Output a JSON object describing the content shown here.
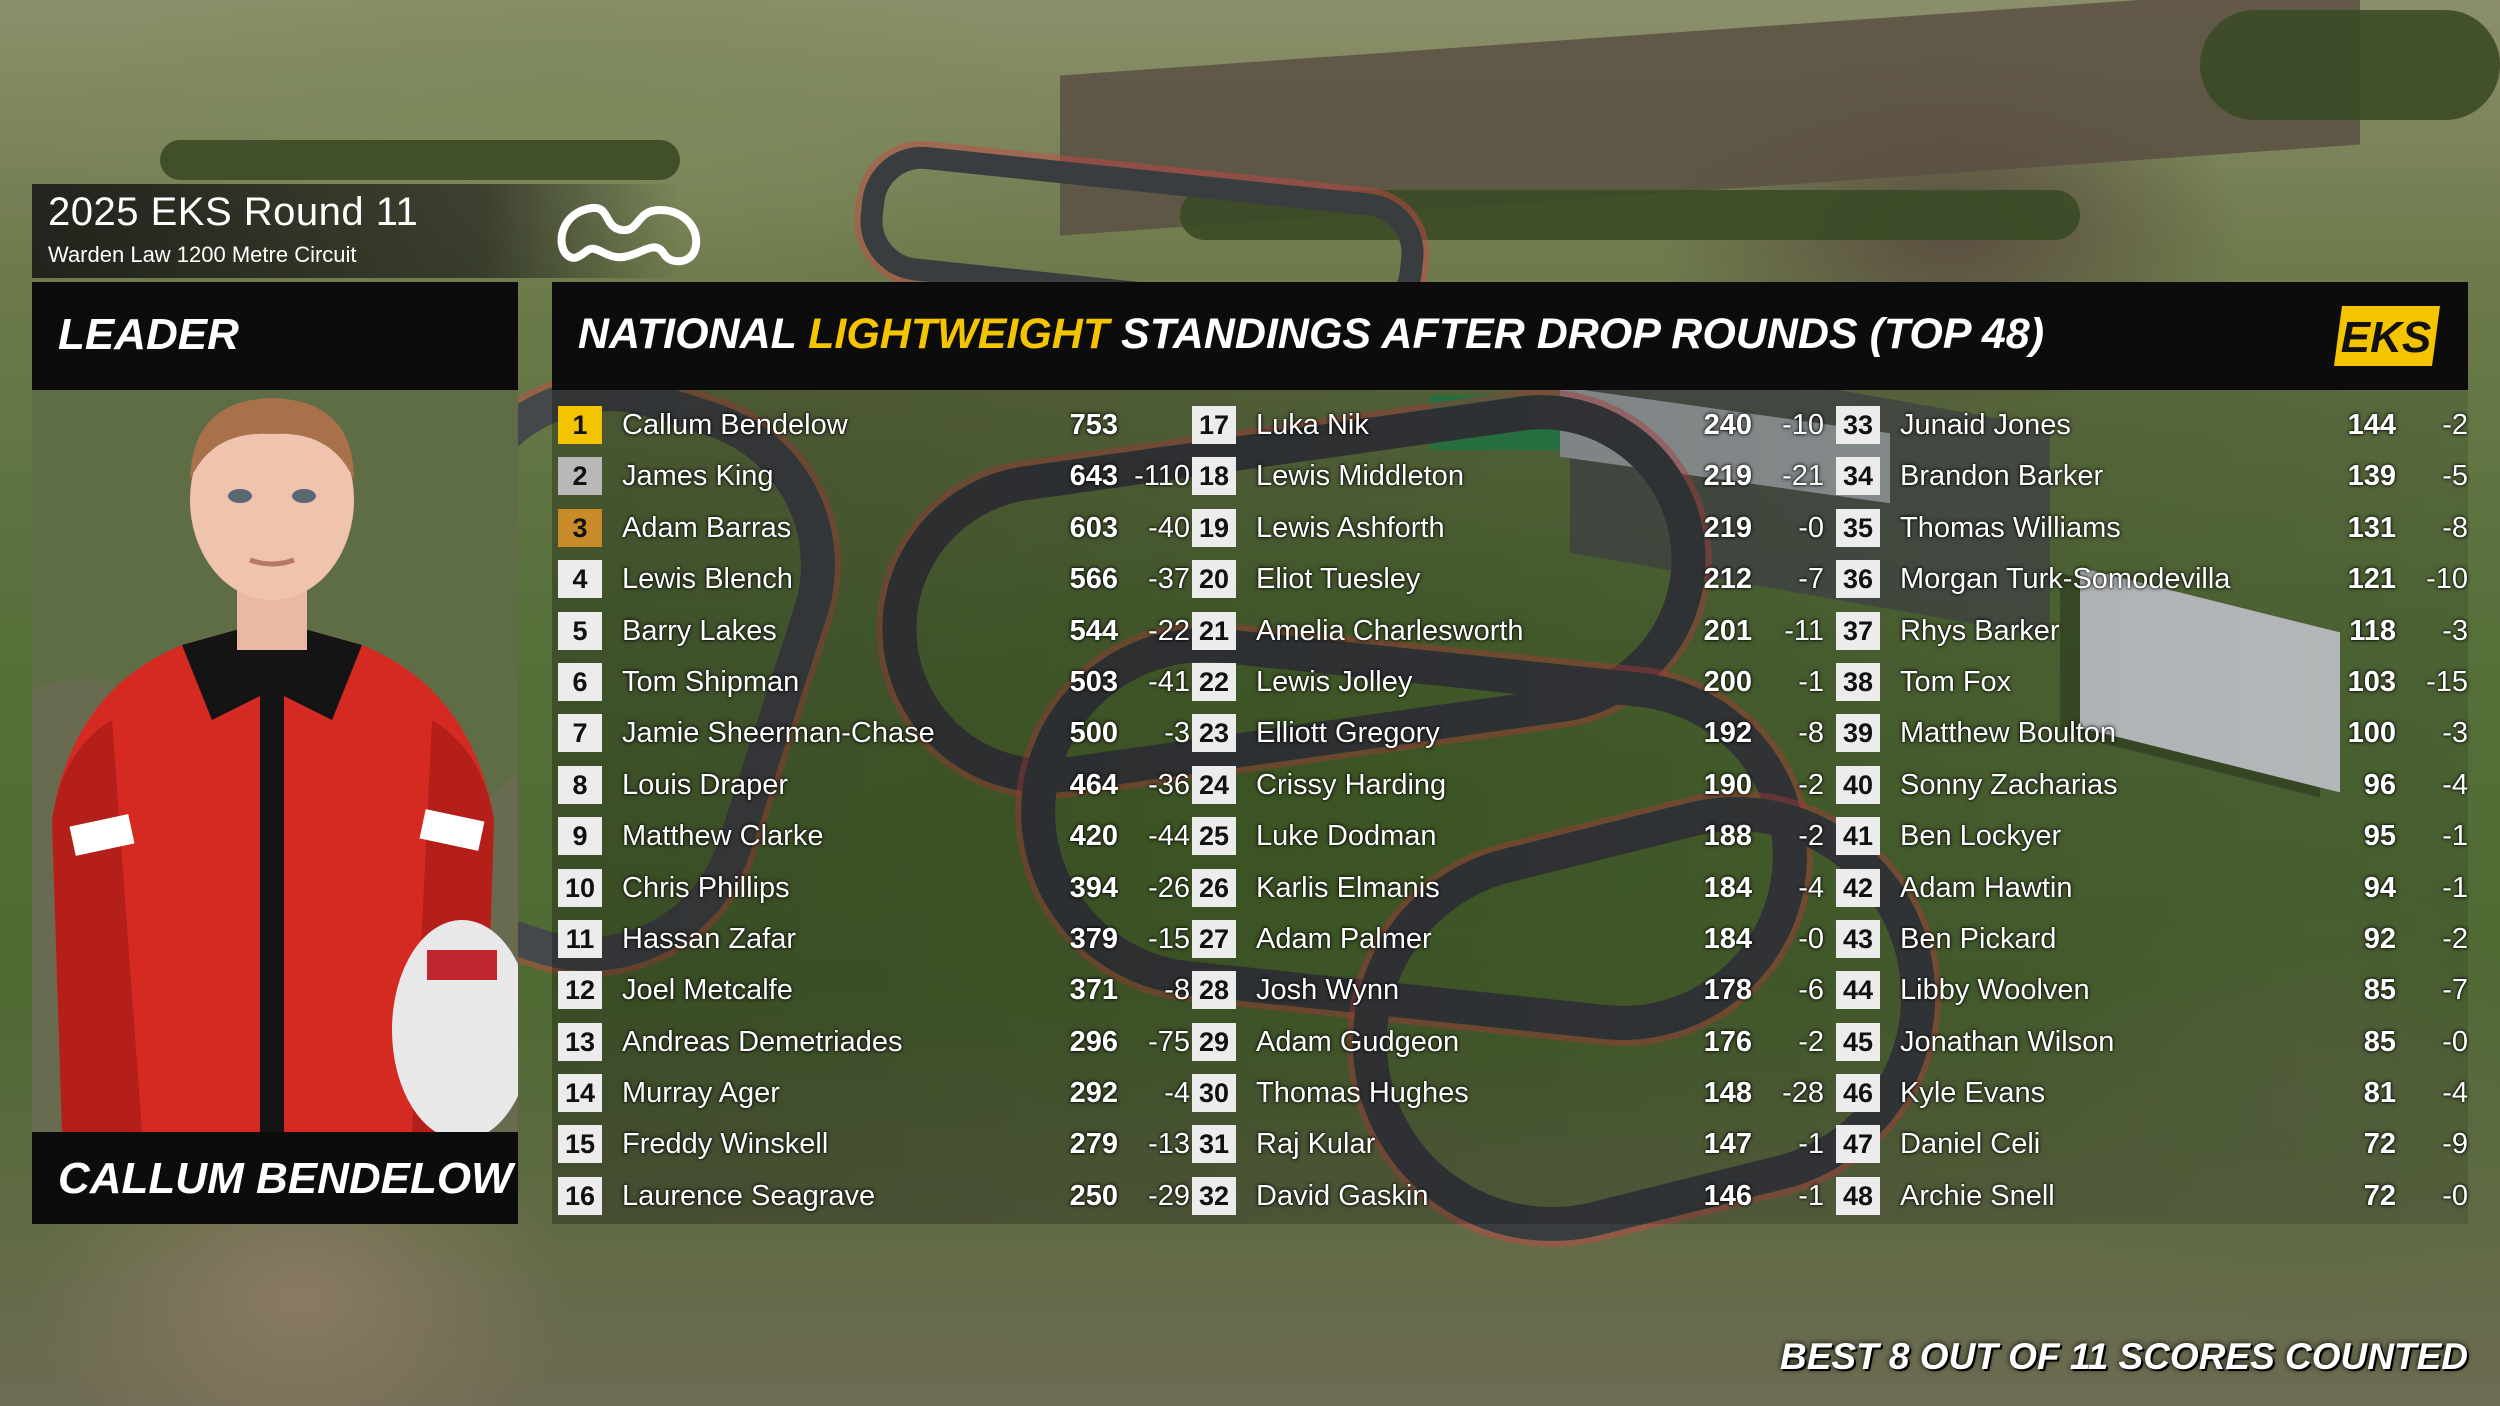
{
  "header": {
    "round_title": "2025 EKS Round 11",
    "circuit": "Warden Law 1200 Metre Circuit"
  },
  "leader": {
    "label": "LEADER",
    "name": "CALLUM BENDELOW"
  },
  "standings": {
    "title_prefix": "NATIONAL ",
    "title_highlight": "LIGHTWEIGHT",
    "title_suffix": " STANDINGS AFTER DROP ROUNDS (TOP 48)",
    "logo_text": "EKS",
    "highlight_color": "#f4c400",
    "rows": [
      {
        "pos": "1",
        "name": "Callum Bendelow",
        "points": "753",
        "drop": ""
      },
      {
        "pos": "2",
        "name": "James King",
        "points": "643",
        "drop": "-110"
      },
      {
        "pos": "3",
        "name": "Adam Barras",
        "points": "603",
        "drop": "-40"
      },
      {
        "pos": "4",
        "name": "Lewis Blench",
        "points": "566",
        "drop": "-37"
      },
      {
        "pos": "5",
        "name": "Barry Lakes",
        "points": "544",
        "drop": "-22"
      },
      {
        "pos": "6",
        "name": "Tom Shipman",
        "points": "503",
        "drop": "-41"
      },
      {
        "pos": "7",
        "name": "Jamie Sheerman-Chase",
        "points": "500",
        "drop": "-3"
      },
      {
        "pos": "8",
        "name": "Louis Draper",
        "points": "464",
        "drop": "-36"
      },
      {
        "pos": "9",
        "name": "Matthew Clarke",
        "points": "420",
        "drop": "-44"
      },
      {
        "pos": "10",
        "name": "Chris Phillips",
        "points": "394",
        "drop": "-26"
      },
      {
        "pos": "11",
        "name": "Hassan Zafar",
        "points": "379",
        "drop": "-15"
      },
      {
        "pos": "12",
        "name": "Joel Metcalfe",
        "points": "371",
        "drop": "-8"
      },
      {
        "pos": "13",
        "name": "Andreas Demetriades",
        "points": "296",
        "drop": "-75"
      },
      {
        "pos": "14",
        "name": "Murray Ager",
        "points": "292",
        "drop": "-4"
      },
      {
        "pos": "15",
        "name": "Freddy Winskell",
        "points": "279",
        "drop": "-13"
      },
      {
        "pos": "16",
        "name": "Laurence Seagrave",
        "points": "250",
        "drop": "-29"
      },
      {
        "pos": "17",
        "name": "Luka Nik",
        "points": "240",
        "drop": "-10"
      },
      {
        "pos": "18",
        "name": "Lewis Middleton",
        "points": "219",
        "drop": "-21"
      },
      {
        "pos": "19",
        "name": "Lewis Ashforth",
        "points": "219",
        "drop": "-0"
      },
      {
        "pos": "20",
        "name": "Eliot Tuesley",
        "points": "212",
        "drop": "-7"
      },
      {
        "pos": "21",
        "name": "Amelia Charlesworth",
        "points": "201",
        "drop": "-11"
      },
      {
        "pos": "22",
        "name": "Lewis Jolley",
        "points": "200",
        "drop": "-1"
      },
      {
        "pos": "23",
        "name": "Elliott Gregory",
        "points": "192",
        "drop": "-8"
      },
      {
        "pos": "24",
        "name": "Crissy Harding",
        "points": "190",
        "drop": "-2"
      },
      {
        "pos": "25",
        "name": "Luke Dodman",
        "points": "188",
        "drop": "-2"
      },
      {
        "pos": "26",
        "name": "Karlis Elmanis",
        "points": "184",
        "drop": "-4"
      },
      {
        "pos": "27",
        "name": "Adam Palmer",
        "points": "184",
        "drop": "-0"
      },
      {
        "pos": "28",
        "name": "Josh Wynn",
        "points": "178",
        "drop": "-6"
      },
      {
        "pos": "29",
        "name": "Adam Gudgeon",
        "points": "176",
        "drop": "-2"
      },
      {
        "pos": "30",
        "name": "Thomas Hughes",
        "points": "148",
        "drop": "-28"
      },
      {
        "pos": "31",
        "name": "Raj Kular",
        "points": "147",
        "drop": "-1"
      },
      {
        "pos": "32",
        "name": "David Gaskin",
        "points": "146",
        "drop": "-1"
      },
      {
        "pos": "33",
        "name": "Junaid Jones",
        "points": "144",
        "drop": "-2"
      },
      {
        "pos": "34",
        "name": "Brandon Barker",
        "points": "139",
        "drop": "-5"
      },
      {
        "pos": "35",
        "name": "Thomas Williams",
        "points": "131",
        "drop": "-8"
      },
      {
        "pos": "36",
        "name": "Morgan Turk-Somodevilla",
        "points": "121",
        "drop": "-10"
      },
      {
        "pos": "37",
        "name": "Rhys Barker",
        "points": "118",
        "drop": "-3"
      },
      {
        "pos": "38",
        "name": "Tom Fox",
        "points": "103",
        "drop": "-15"
      },
      {
        "pos": "39",
        "name": "Matthew Boulton",
        "points": "100",
        "drop": "-3"
      },
      {
        "pos": "40",
        "name": "Sonny Zacharias",
        "points": "96",
        "drop": "-4"
      },
      {
        "pos": "41",
        "name": "Ben Lockyer",
        "points": "95",
        "drop": "-1"
      },
      {
        "pos": "42",
        "name": "Adam Hawtin",
        "points": "94",
        "drop": "-1"
      },
      {
        "pos": "43",
        "name": "Ben Pickard",
        "points": "92",
        "drop": "-2"
      },
      {
        "pos": "44",
        "name": "Libby Woolven",
        "points": "85",
        "drop": "-7"
      },
      {
        "pos": "45",
        "name": "Jonathan Wilson",
        "points": "85",
        "drop": "-0"
      },
      {
        "pos": "46",
        "name": "Kyle Evans",
        "points": "81",
        "drop": "-4"
      },
      {
        "pos": "47",
        "name": "Daniel Celi",
        "points": "72",
        "drop": "-9"
      },
      {
        "pos": "48",
        "name": "Archie Snell",
        "points": "72",
        "drop": "-0"
      }
    ]
  },
  "footnote": "BEST 8 OUT OF 11 SCORES COUNTED",
  "icons": [
    "circuit-logo-icon",
    "eks-logo-icon",
    "leader-photo"
  ]
}
